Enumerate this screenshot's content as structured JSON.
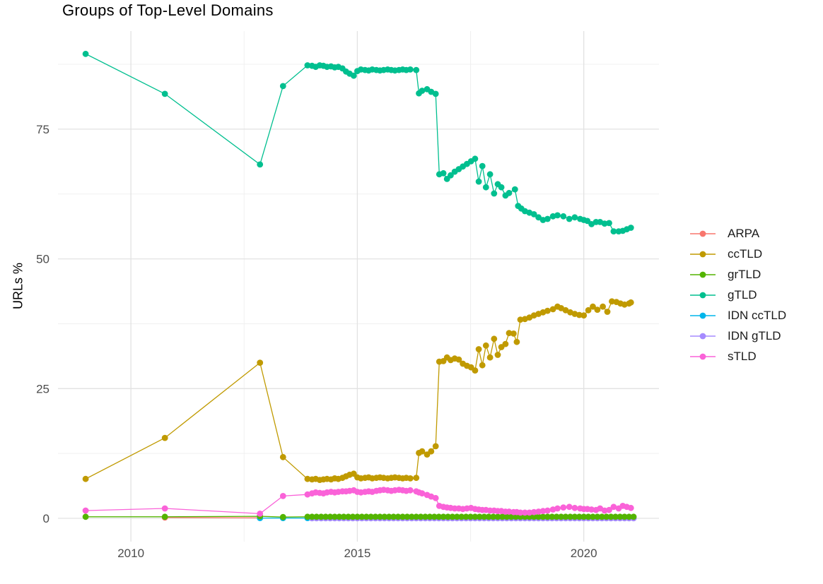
{
  "title": "Groups of Top-Level Domains",
  "axes": {
    "ylabel": "URLs %"
  },
  "legend": {
    "items": [
      {
        "label": "ARPA",
        "color": "#F8766D"
      },
      {
        "label": "ccTLD",
        "color": "#C09A00"
      },
      {
        "label": "grTLD",
        "color": "#53B400"
      },
      {
        "label": "gTLD",
        "color": "#00BF8F"
      },
      {
        "label": "IDN ccTLD",
        "color": "#00B6EB"
      },
      {
        "label": "IDN gTLD",
        "color": "#A58AFF"
      },
      {
        "label": "sTLD",
        "color": "#FA62D8"
      }
    ]
  },
  "chart_data": {
    "type": "line",
    "title": "Groups of Top-Level Domains",
    "xlabel": "",
    "ylabel": "URLs %",
    "xlim": [
      2008.39,
      2021.66
    ],
    "ylim": [
      -4.49,
      93.9
    ],
    "x_ticks": [
      2010,
      2015,
      2020
    ],
    "x_minor_ticks": [
      2012.5,
      2017.5
    ],
    "y_ticks": [
      0,
      25,
      50,
      75
    ],
    "y_minor_ticks": [
      12.5,
      37.5,
      62.5,
      87.5
    ],
    "grid": true,
    "legend_position": "right",
    "draw_order": [
      "ARPA",
      "IDN ccTLD",
      "IDN gTLD",
      "grTLD",
      "ccTLD",
      "gTLD",
      "sTLD"
    ],
    "series": [
      {
        "name": "ARPA",
        "color": "#F8766D",
        "points": [
          [
            2010.75,
            0.15
          ],
          [
            2012.85,
            0.1
          ]
        ]
      },
      {
        "name": "ccTLD",
        "color": "#C09A00",
        "points": [
          [
            2009.0,
            7.6
          ],
          [
            2010.75,
            15.5
          ],
          [
            2012.85,
            30.0
          ],
          [
            2013.36,
            11.8
          ],
          [
            2013.9,
            7.6
          ],
          [
            2014.0,
            7.5
          ],
          [
            2014.08,
            7.6
          ],
          [
            2014.17,
            7.4
          ],
          [
            2014.25,
            7.5
          ],
          [
            2014.33,
            7.6
          ],
          [
            2014.42,
            7.5
          ],
          [
            2014.5,
            7.7
          ],
          [
            2014.58,
            7.6
          ],
          [
            2014.67,
            7.8
          ],
          [
            2014.75,
            8.1
          ],
          [
            2014.83,
            8.4
          ],
          [
            2014.92,
            8.6
          ],
          [
            2015.0,
            7.9
          ],
          [
            2015.08,
            7.7
          ],
          [
            2015.17,
            7.8
          ],
          [
            2015.25,
            7.9
          ],
          [
            2015.33,
            7.7
          ],
          [
            2015.42,
            7.8
          ],
          [
            2015.5,
            7.9
          ],
          [
            2015.58,
            7.8
          ],
          [
            2015.67,
            7.7
          ],
          [
            2015.75,
            7.8
          ],
          [
            2015.83,
            7.9
          ],
          [
            2015.92,
            7.8
          ],
          [
            2016.0,
            7.7
          ],
          [
            2016.08,
            7.8
          ],
          [
            2016.17,
            7.7
          ],
          [
            2016.3,
            7.8
          ],
          [
            2016.36,
            12.6
          ],
          [
            2016.43,
            12.9
          ],
          [
            2016.54,
            12.3
          ],
          [
            2016.63,
            12.9
          ],
          [
            2016.73,
            13.9
          ],
          [
            2016.81,
            30.2
          ],
          [
            2016.9,
            30.3
          ],
          [
            2016.98,
            31.0
          ],
          [
            2017.06,
            30.5
          ],
          [
            2017.15,
            30.8
          ],
          [
            2017.24,
            30.6
          ],
          [
            2017.33,
            29.8
          ],
          [
            2017.42,
            29.4
          ],
          [
            2017.51,
            29.1
          ],
          [
            2017.6,
            28.5
          ],
          [
            2017.68,
            32.6
          ],
          [
            2017.76,
            29.5
          ],
          [
            2017.84,
            33.3
          ],
          [
            2017.93,
            31.0
          ],
          [
            2018.02,
            34.6
          ],
          [
            2018.1,
            31.5
          ],
          [
            2018.18,
            33.0
          ],
          [
            2018.27,
            33.6
          ],
          [
            2018.35,
            35.7
          ],
          [
            2018.45,
            35.6
          ],
          [
            2018.52,
            34.0
          ],
          [
            2018.6,
            38.3
          ],
          [
            2018.7,
            38.4
          ],
          [
            2018.8,
            38.7
          ],
          [
            2018.9,
            39.1
          ],
          [
            2019.0,
            39.4
          ],
          [
            2019.1,
            39.7
          ],
          [
            2019.2,
            40.0
          ],
          [
            2019.32,
            40.3
          ],
          [
            2019.42,
            40.8
          ],
          [
            2019.5,
            40.5
          ],
          [
            2019.6,
            40.1
          ],
          [
            2019.7,
            39.7
          ],
          [
            2019.8,
            39.4
          ],
          [
            2019.9,
            39.2
          ],
          [
            2020.0,
            39.1
          ],
          [
            2020.1,
            40.1
          ],
          [
            2020.2,
            40.8
          ],
          [
            2020.3,
            40.2
          ],
          [
            2020.42,
            40.8
          ],
          [
            2020.52,
            39.8
          ],
          [
            2020.62,
            41.8
          ],
          [
            2020.72,
            41.7
          ],
          [
            2020.81,
            41.4
          ],
          [
            2020.9,
            41.2
          ],
          [
            2021.0,
            41.4
          ],
          [
            2021.04,
            41.6
          ]
        ]
      },
      {
        "name": "grTLD",
        "color": "#53B400",
        "points": [
          [
            2009.0,
            0.3
          ],
          [
            2010.75,
            0.3
          ],
          [
            2012.85,
            0.4
          ],
          [
            2013.36,
            0.25
          ],
          [
            2013.9,
            0.3
          ]
        ],
        "run": {
          "from": 2014.0,
          "to": 2021.12,
          "step": 0.1,
          "y": 0.3
        }
      },
      {
        "name": "gTLD",
        "color": "#00BF8F",
        "points": [
          [
            2009.0,
            89.5
          ],
          [
            2010.75,
            81.8
          ],
          [
            2012.85,
            68.2
          ],
          [
            2013.36,
            83.3
          ],
          [
            2013.9,
            87.3
          ],
          [
            2014.0,
            87.2
          ],
          [
            2014.08,
            87.0
          ],
          [
            2014.17,
            87.3
          ],
          [
            2014.25,
            87.2
          ],
          [
            2014.33,
            87.0
          ],
          [
            2014.42,
            87.1
          ],
          [
            2014.5,
            86.9
          ],
          [
            2014.58,
            87.0
          ],
          [
            2014.67,
            86.7
          ],
          [
            2014.75,
            86.1
          ],
          [
            2014.83,
            85.7
          ],
          [
            2014.92,
            85.3
          ],
          [
            2015.0,
            86.2
          ],
          [
            2015.08,
            86.5
          ],
          [
            2015.17,
            86.4
          ],
          [
            2015.25,
            86.3
          ],
          [
            2015.33,
            86.5
          ],
          [
            2015.42,
            86.4
          ],
          [
            2015.5,
            86.3
          ],
          [
            2015.58,
            86.4
          ],
          [
            2015.67,
            86.5
          ],
          [
            2015.75,
            86.4
          ],
          [
            2015.83,
            86.3
          ],
          [
            2015.92,
            86.4
          ],
          [
            2016.0,
            86.5
          ],
          [
            2016.08,
            86.4
          ],
          [
            2016.17,
            86.5
          ],
          [
            2016.3,
            86.4
          ],
          [
            2016.36,
            81.9
          ],
          [
            2016.43,
            82.4
          ],
          [
            2016.54,
            82.7
          ],
          [
            2016.63,
            82.2
          ],
          [
            2016.73,
            81.8
          ],
          [
            2016.81,
            66.3
          ],
          [
            2016.9,
            66.5
          ],
          [
            2016.98,
            65.4
          ],
          [
            2017.06,
            66.1
          ],
          [
            2017.15,
            66.8
          ],
          [
            2017.24,
            67.3
          ],
          [
            2017.33,
            67.8
          ],
          [
            2017.42,
            68.3
          ],
          [
            2017.51,
            68.8
          ],
          [
            2017.6,
            69.3
          ],
          [
            2017.68,
            64.9
          ],
          [
            2017.76,
            67.9
          ],
          [
            2017.84,
            63.8
          ],
          [
            2017.93,
            66.3
          ],
          [
            2018.02,
            62.6
          ],
          [
            2018.1,
            64.4
          ],
          [
            2018.18,
            63.8
          ],
          [
            2018.27,
            62.2
          ],
          [
            2018.35,
            62.7
          ],
          [
            2018.48,
            63.4
          ],
          [
            2018.55,
            60.2
          ],
          [
            2018.62,
            59.7
          ],
          [
            2018.7,
            59.2
          ],
          [
            2018.8,
            58.9
          ],
          [
            2018.9,
            58.6
          ],
          [
            2019.0,
            58.0
          ],
          [
            2019.1,
            57.5
          ],
          [
            2019.2,
            57.7
          ],
          [
            2019.32,
            58.2
          ],
          [
            2019.42,
            58.4
          ],
          [
            2019.55,
            58.2
          ],
          [
            2019.68,
            57.7
          ],
          [
            2019.8,
            58.0
          ],
          [
            2019.92,
            57.7
          ],
          [
            2020.0,
            57.5
          ],
          [
            2020.08,
            57.3
          ],
          [
            2020.17,
            56.7
          ],
          [
            2020.27,
            57.1
          ],
          [
            2020.36,
            57.1
          ],
          [
            2020.46,
            56.8
          ],
          [
            2020.56,
            56.9
          ],
          [
            2020.66,
            55.3
          ],
          [
            2020.77,
            55.3
          ],
          [
            2020.86,
            55.4
          ],
          [
            2020.95,
            55.7
          ],
          [
            2021.04,
            56.0
          ]
        ]
      },
      {
        "name": "IDN ccTLD",
        "color": "#00B6EB",
        "points": [
          [
            2012.85,
            0.05
          ],
          [
            2013.36,
            0.05
          ],
          [
            2013.9,
            0.05
          ]
        ],
        "run": {
          "from": 2014.0,
          "to": 2021.0,
          "step": 0.1,
          "y": 0.05
        }
      },
      {
        "name": "IDN gTLD",
        "color": "#A58AFF",
        "points": [],
        "run": {
          "from": 2014.0,
          "to": 2021.1,
          "step": 0.1,
          "y": 0.02
        }
      },
      {
        "name": "sTLD",
        "color": "#FA62D8",
        "points": [
          [
            2009.0,
            1.5
          ],
          [
            2010.75,
            1.9
          ],
          [
            2012.85,
            0.9
          ],
          [
            2013.36,
            4.3
          ],
          [
            2013.9,
            4.6
          ],
          [
            2014.0,
            4.8
          ],
          [
            2014.08,
            5.0
          ],
          [
            2014.17,
            4.9
          ],
          [
            2014.25,
            4.8
          ],
          [
            2014.33,
            5.0
          ],
          [
            2014.42,
            5.1
          ],
          [
            2014.5,
            5.0
          ],
          [
            2014.58,
            5.1
          ],
          [
            2014.67,
            5.2
          ],
          [
            2014.75,
            5.2
          ],
          [
            2014.83,
            5.3
          ],
          [
            2014.92,
            5.4
          ],
          [
            2015.0,
            5.1
          ],
          [
            2015.08,
            5.0
          ],
          [
            2015.17,
            5.1
          ],
          [
            2015.25,
            5.2
          ],
          [
            2015.33,
            5.1
          ],
          [
            2015.42,
            5.3
          ],
          [
            2015.5,
            5.4
          ],
          [
            2015.58,
            5.5
          ],
          [
            2015.67,
            5.4
          ],
          [
            2015.75,
            5.3
          ],
          [
            2015.83,
            5.4
          ],
          [
            2015.92,
            5.5
          ],
          [
            2016.0,
            5.4
          ],
          [
            2016.08,
            5.3
          ],
          [
            2016.17,
            5.4
          ],
          [
            2016.3,
            5.2
          ],
          [
            2016.36,
            5.0
          ],
          [
            2016.43,
            4.8
          ],
          [
            2016.54,
            4.5
          ],
          [
            2016.63,
            4.2
          ],
          [
            2016.73,
            3.9
          ],
          [
            2016.81,
            2.4
          ],
          [
            2016.9,
            2.2
          ],
          [
            2016.98,
            2.1
          ],
          [
            2017.06,
            2.0
          ],
          [
            2017.15,
            1.9
          ],
          [
            2017.24,
            1.9
          ],
          [
            2017.33,
            1.8
          ],
          [
            2017.42,
            1.9
          ],
          [
            2017.51,
            2.0
          ],
          [
            2017.6,
            1.8
          ],
          [
            2017.68,
            1.7
          ],
          [
            2017.76,
            1.6
          ],
          [
            2017.84,
            1.6
          ],
          [
            2017.93,
            1.5
          ],
          [
            2018.02,
            1.5
          ],
          [
            2018.1,
            1.4
          ],
          [
            2018.18,
            1.4
          ],
          [
            2018.27,
            1.3
          ],
          [
            2018.35,
            1.3
          ],
          [
            2018.45,
            1.2
          ],
          [
            2018.52,
            1.2
          ],
          [
            2018.6,
            1.1
          ],
          [
            2018.7,
            1.1
          ],
          [
            2018.8,
            1.1
          ],
          [
            2018.9,
            1.2
          ],
          [
            2019.0,
            1.3
          ],
          [
            2019.1,
            1.4
          ],
          [
            2019.2,
            1.5
          ],
          [
            2019.32,
            1.7
          ],
          [
            2019.42,
            1.9
          ],
          [
            2019.55,
            2.1
          ],
          [
            2019.68,
            2.2
          ],
          [
            2019.8,
            2.0
          ],
          [
            2019.92,
            1.9
          ],
          [
            2020.0,
            1.8
          ],
          [
            2020.08,
            1.8
          ],
          [
            2020.17,
            1.7
          ],
          [
            2020.27,
            1.6
          ],
          [
            2020.36,
            1.9
          ],
          [
            2020.46,
            1.5
          ],
          [
            2020.56,
            1.6
          ],
          [
            2020.66,
            2.2
          ],
          [
            2020.77,
            1.9
          ],
          [
            2020.86,
            2.4
          ],
          [
            2020.95,
            2.2
          ],
          [
            2021.04,
            2.0
          ]
        ]
      }
    ]
  }
}
